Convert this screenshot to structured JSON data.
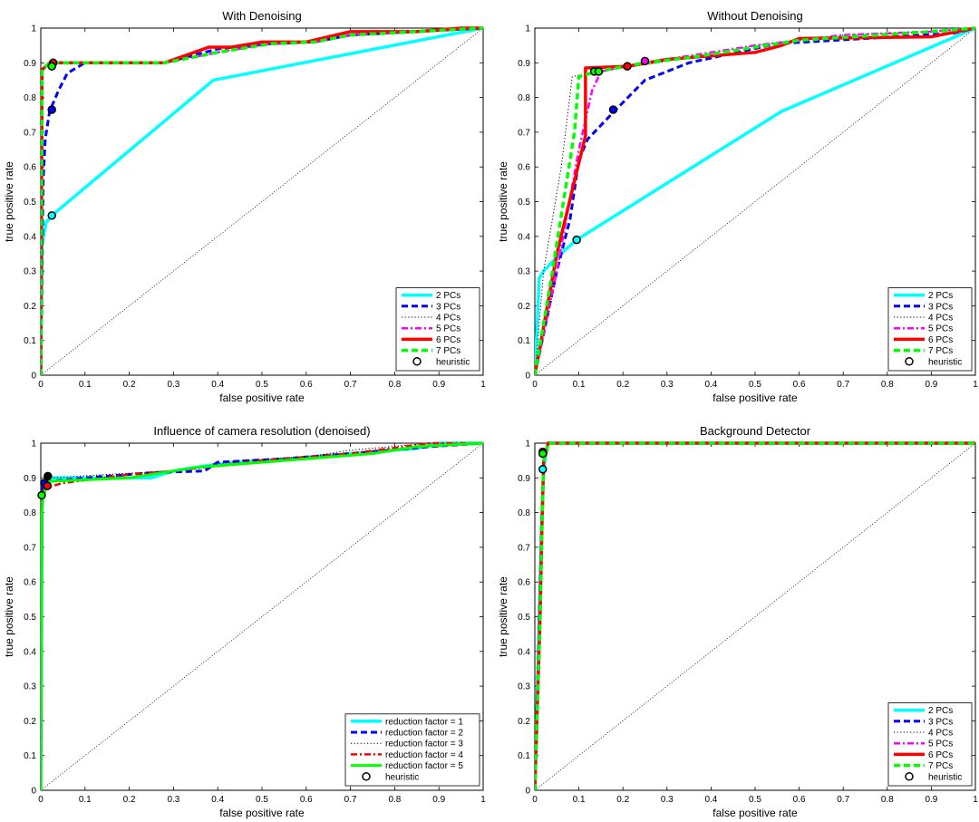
{
  "chart_data": [
    {
      "type": "line",
      "title": "With Denoising",
      "xlabel": "false positive rate",
      "ylabel": "true positive rate",
      "xlim": [
        0,
        1
      ],
      "ylim": [
        0,
        1
      ],
      "xticks": [
        "0",
        "0.1",
        "0.2",
        "0.3",
        "0.4",
        "0.5",
        "0.6",
        "0.7",
        "0.8",
        "0.9",
        "1"
      ],
      "yticks": [
        "0",
        "0.1",
        "0.2",
        "0.3",
        "0.4",
        "0.5",
        "0.6",
        "0.7",
        "0.8",
        "0.9",
        "1"
      ],
      "legend_position": "bottom-right",
      "series": [
        {
          "name": "2 PCs",
          "color": "#00ffff",
          "dash": "solid",
          "width": 3.5,
          "x": [
            0,
            0.003,
            0.012,
            0.025,
            0.39,
            1
          ],
          "y": [
            0,
            0.38,
            0.44,
            0.46,
            0.85,
            1
          ]
        },
        {
          "name": "3 PCs",
          "color": "#0000ff",
          "dash": "dashed",
          "width": 3,
          "x": [
            0,
            0.005,
            0.01,
            0.02,
            0.04,
            0.06,
            0.1,
            0.28,
            0.4,
            0.52,
            0.62,
            0.7,
            1
          ],
          "y": [
            0,
            0.55,
            0.68,
            0.76,
            0.82,
            0.87,
            0.9,
            0.9,
            0.94,
            0.955,
            0.96,
            0.98,
            1
          ]
        },
        {
          "name": "4 PCs",
          "color": "#000000",
          "dash": "dotted",
          "width": 1,
          "x": [
            0,
            0.003,
            0.02,
            0.1,
            0.28,
            0.4,
            0.52,
            0.62,
            0.7,
            1
          ],
          "y": [
            0,
            0.88,
            0.9,
            0.9,
            0.9,
            0.93,
            0.955,
            0.96,
            0.98,
            1
          ]
        },
        {
          "name": "5 PCs",
          "color": "#ff00ff",
          "dash": "dashdot",
          "width": 2.5,
          "x": [
            0,
            0.003,
            0.02,
            0.1,
            0.28,
            0.4,
            0.52,
            0.62,
            0.7,
            1
          ],
          "y": [
            0,
            0.88,
            0.9,
            0.9,
            0.9,
            0.93,
            0.955,
            0.96,
            0.98,
            1
          ]
        },
        {
          "name": "6 PCs",
          "color": "#ff0000",
          "dash": "solid",
          "width": 3.5,
          "x": [
            0,
            0.003,
            0.02,
            0.1,
            0.28,
            0.38,
            0.43,
            0.5,
            0.6,
            0.7,
            0.85,
            0.95,
            1
          ],
          "y": [
            0,
            0.88,
            0.9,
            0.9,
            0.9,
            0.945,
            0.945,
            0.96,
            0.96,
            0.99,
            0.99,
            1,
            1
          ]
        },
        {
          "name": "7 PCs",
          "color": "#00ff00",
          "dash": "dashed",
          "width": 3.5,
          "x": [
            0,
            0.003,
            0.02,
            0.1,
            0.28,
            0.4,
            0.52,
            0.62,
            0.7,
            1
          ],
          "y": [
            0,
            0.88,
            0.9,
            0.9,
            0.9,
            0.93,
            0.955,
            0.96,
            0.98,
            1
          ]
        }
      ],
      "heuristic": {
        "name": "heuristic",
        "points": [
          {
            "x": 0.025,
            "y": 0.46,
            "fill": "#00ffff"
          },
          {
            "x": 0.025,
            "y": 0.765,
            "fill": "#0000ff"
          },
          {
            "x": 0.028,
            "y": 0.9,
            "fill": "#ff0000"
          },
          {
            "x": 0.025,
            "y": 0.89,
            "fill": "#00ff00"
          }
        ]
      }
    },
    {
      "type": "line",
      "title": "Without Denoising",
      "xlabel": "false positive rate",
      "ylabel": "true positive rate",
      "xlim": [
        0,
        1
      ],
      "ylim": [
        0,
        1
      ],
      "xticks": [
        "0",
        "0.1",
        "0.2",
        "0.3",
        "0.4",
        "0.5",
        "0.6",
        "0.7",
        "0.8",
        "0.9",
        "1"
      ],
      "yticks": [
        "0",
        "0.1",
        "0.2",
        "0.3",
        "0.4",
        "0.5",
        "0.6",
        "0.7",
        "0.8",
        "0.9",
        "1"
      ],
      "legend_position": "bottom-right",
      "series": [
        {
          "name": "2 PCs",
          "color": "#00ffff",
          "dash": "solid",
          "width": 3.5,
          "x": [
            0,
            0.01,
            0.02,
            0.05,
            0.095,
            0.56,
            1
          ],
          "y": [
            0,
            0.28,
            0.3,
            0.34,
            0.39,
            0.76,
            1
          ]
        },
        {
          "name": "3 PCs",
          "color": "#0000ff",
          "dash": "dashed",
          "width": 3,
          "x": [
            0,
            0.05,
            0.08,
            0.1,
            0.12,
            0.18,
            0.25,
            0.35,
            0.55,
            0.75,
            0.95,
            1
          ],
          "y": [
            0,
            0.3,
            0.45,
            0.62,
            0.68,
            0.76,
            0.85,
            0.9,
            0.955,
            0.97,
            0.985,
            1
          ]
        },
        {
          "name": "4 PCs",
          "color": "#000000",
          "dash": "dotted",
          "width": 1,
          "x": [
            0,
            0.02,
            0.06,
            0.085,
            0.12,
            0.28,
            0.5,
            0.7,
            0.9,
            1
          ],
          "y": [
            0,
            0.3,
            0.6,
            0.86,
            0.87,
            0.9,
            0.95,
            0.98,
            0.99,
            1
          ]
        },
        {
          "name": "5 PCs",
          "color": "#ff00ff",
          "dash": "dashdot",
          "width": 2.5,
          "x": [
            0,
            0.05,
            0.1,
            0.13,
            0.15,
            0.25,
            0.3,
            0.5,
            0.7,
            0.9,
            1
          ],
          "y": [
            0,
            0.3,
            0.65,
            0.82,
            0.875,
            0.9,
            0.91,
            0.95,
            0.98,
            0.99,
            1
          ]
        },
        {
          "name": "6 PCs",
          "color": "#ff0000",
          "dash": "solid",
          "width": 3.5,
          "x": [
            0,
            0.05,
            0.115,
            0.115,
            0.21,
            0.3,
            0.4,
            0.5,
            0.56,
            0.6,
            0.9,
            1
          ],
          "y": [
            0,
            0.35,
            0.69,
            0.885,
            0.89,
            0.91,
            0.92,
            0.93,
            0.95,
            0.97,
            0.975,
            1
          ]
        },
        {
          "name": "7 PCs",
          "color": "#00ff00",
          "dash": "dashed",
          "width": 3.5,
          "x": [
            0,
            0.04,
            0.09,
            0.1,
            0.14,
            0.25,
            0.35,
            0.6,
            0.9,
            1
          ],
          "y": [
            0,
            0.3,
            0.7,
            0.86,
            0.875,
            0.9,
            0.915,
            0.965,
            0.99,
            1
          ]
        }
      ],
      "heuristic": {
        "name": "heuristic",
        "points": [
          {
            "x": 0.095,
            "y": 0.39,
            "fill": "#00ffff"
          },
          {
            "x": 0.178,
            "y": 0.765,
            "fill": "#0000ff"
          },
          {
            "x": 0.25,
            "y": 0.905,
            "fill": "#ff00ff"
          },
          {
            "x": 0.21,
            "y": 0.89,
            "fill": "#ff0000"
          },
          {
            "x": 0.135,
            "y": 0.875,
            "fill": "#00ff00"
          },
          {
            "x": 0.145,
            "y": 0.875,
            "fill": "#00ff00"
          }
        ]
      }
    },
    {
      "type": "line",
      "title": "Influence of camera resolution (denoised)",
      "xlabel": "false positive rate",
      "ylabel": "true positive rate",
      "xlim": [
        0,
        1
      ],
      "ylim": [
        0,
        1
      ],
      "xticks": [
        "0",
        "0.1",
        "0.2",
        "0.3",
        "0.4",
        "0.5",
        "0.6",
        "0.7",
        "0.8",
        "0.9",
        "1"
      ],
      "yticks": [
        "0",
        "0.1",
        "0.2",
        "0.3",
        "0.4",
        "0.5",
        "0.6",
        "0.7",
        "0.8",
        "0.9",
        "1"
      ],
      "legend_position": "bottom-right",
      "series": [
        {
          "name": "reduction factor = 1",
          "color": "#00ffff",
          "dash": "solid",
          "width": 3.5,
          "x": [
            0,
            0.003,
            0.02,
            0.25,
            0.3,
            0.4,
            0.6,
            0.7,
            0.85,
            0.9,
            1
          ],
          "y": [
            0,
            0.85,
            0.9,
            0.9,
            0.92,
            0.94,
            0.96,
            0.97,
            0.985,
            1,
            1
          ]
        },
        {
          "name": "reduction factor = 2",
          "color": "#0000ff",
          "dash": "dashed",
          "width": 3,
          "x": [
            0,
            0.003,
            0.02,
            0.1,
            0.25,
            0.37,
            0.4,
            0.55,
            0.7,
            0.88,
            1
          ],
          "y": [
            0,
            0.87,
            0.89,
            0.9,
            0.915,
            0.92,
            0.945,
            0.955,
            0.97,
            0.99,
            1
          ]
        },
        {
          "name": "reduction factor = 3",
          "color": "#000000",
          "dash": "dotted",
          "width": 1,
          "x": [
            0,
            0.003,
            0.02,
            0.15,
            0.3,
            0.45,
            0.6,
            0.7,
            0.88,
            1
          ],
          "y": [
            0,
            0.88,
            0.9,
            0.91,
            0.92,
            0.95,
            0.96,
            0.98,
            1,
            1
          ]
        },
        {
          "name": "reduction factor = 4",
          "color": "#ff0000",
          "dash": "dashdot",
          "width": 2.5,
          "x": [
            0,
            0.003,
            0.02,
            0.05,
            0.2,
            0.3,
            0.5,
            0.7,
            0.88,
            1
          ],
          "y": [
            0,
            0.86,
            0.875,
            0.885,
            0.91,
            0.92,
            0.95,
            0.97,
            1,
            1
          ]
        },
        {
          "name": "reduction factor = 5",
          "color": "#00ff00",
          "dash": "solid",
          "width": 3,
          "x": [
            0,
            0.003,
            0.005,
            0.02,
            0.2,
            0.35,
            0.6,
            0.75,
            0.85,
            1
          ],
          "y": [
            0,
            0.8,
            0.85,
            0.89,
            0.9,
            0.93,
            0.955,
            0.97,
            0.99,
            1
          ]
        }
      ],
      "heuristic": {
        "name": "heuristic",
        "points": [
          {
            "x": 0.008,
            "y": 0.885,
            "fill": "#0000ff"
          },
          {
            "x": 0.016,
            "y": 0.905,
            "fill": "#000000"
          },
          {
            "x": 0.015,
            "y": 0.877,
            "fill": "#ff0000"
          },
          {
            "x": 0.002,
            "y": 0.85,
            "fill": "#00ff00"
          }
        ]
      }
    },
    {
      "type": "line",
      "title": "Background Detector",
      "xlabel": "false positive rate",
      "ylabel": "true positive rate",
      "xlim": [
        0,
        1
      ],
      "ylim": [
        0,
        1
      ],
      "xticks": [
        "0",
        "0.1",
        "0.2",
        "0.3",
        "0.4",
        "0.5",
        "0.6",
        "0.7",
        "0.8",
        "0.9",
        "1"
      ],
      "yticks": [
        "0",
        "0.1",
        "0.2",
        "0.3",
        "0.4",
        "0.5",
        "0.6",
        "0.7",
        "0.8",
        "0.9",
        "1"
      ],
      "legend_position": "bottom-right",
      "series": [
        {
          "name": "2 PCs",
          "color": "#00ffff",
          "dash": "solid",
          "width": 3.5,
          "x": [
            0,
            0.01,
            0.015,
            0.02,
            0.025,
            0.03,
            1
          ],
          "y": [
            0,
            0.49,
            0.75,
            0.92,
            0.97,
            1,
            1
          ]
        },
        {
          "name": "3 PCs",
          "color": "#0000ff",
          "dash": "dashed",
          "width": 3,
          "x": [
            0,
            0.01,
            0.015,
            0.02,
            0.025,
            0.03,
            1
          ],
          "y": [
            0,
            0.49,
            0.75,
            0.95,
            0.97,
            1,
            1
          ]
        },
        {
          "name": "4 PCs",
          "color": "#000000",
          "dash": "dotted",
          "width": 1,
          "x": [
            0,
            0.01,
            0.015,
            0.02,
            0.025,
            0.03,
            1
          ],
          "y": [
            0,
            0.49,
            0.75,
            0.95,
            0.97,
            1,
            1
          ]
        },
        {
          "name": "5 PCs",
          "color": "#ff00ff",
          "dash": "dashdot",
          "width": 2.5,
          "x": [
            0,
            0.01,
            0.015,
            0.02,
            0.025,
            0.03,
            1
          ],
          "y": [
            0,
            0.49,
            0.75,
            0.95,
            0.97,
            1,
            1
          ]
        },
        {
          "name": "6 PCs",
          "color": "#ff0000",
          "dash": "solid",
          "width": 3.5,
          "x": [
            0,
            0.012,
            0.016,
            0.02,
            0.025,
            0.03,
            1
          ],
          "y": [
            0,
            0.5,
            0.75,
            0.95,
            0.97,
            1,
            1
          ]
        },
        {
          "name": "7 PCs",
          "color": "#00ff00",
          "dash": "dashed",
          "width": 3.5,
          "x": [
            0,
            0.012,
            0.016,
            0.02,
            0.025,
            0.03,
            1
          ],
          "y": [
            0,
            0.5,
            0.75,
            0.95,
            0.97,
            1,
            1
          ]
        }
      ],
      "heuristic": {
        "name": "heuristic",
        "points": [
          {
            "x": 0.018,
            "y": 0.925,
            "fill": "#00ffff"
          },
          {
            "x": 0.018,
            "y": 0.975,
            "fill": "#ff0000"
          },
          {
            "x": 0.018,
            "y": 0.97,
            "fill": "#00ff00"
          }
        ]
      }
    }
  ]
}
